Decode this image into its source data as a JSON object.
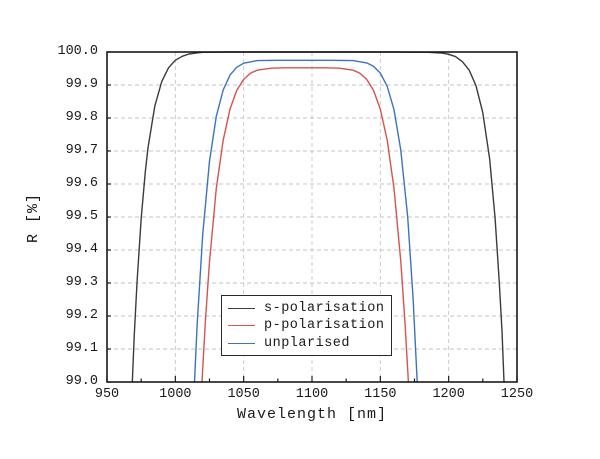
{
  "chart_data": {
    "type": "line",
    "title": "",
    "xlabel": "Wavelength [nm]",
    "ylabel": "R [%]",
    "xlim": [
      950,
      1250
    ],
    "ylim": [
      99.0,
      100.0
    ],
    "x_major_ticks": [
      950,
      1000,
      1050,
      1100,
      1150,
      1200,
      1250
    ],
    "x_tick_labels": [
      "950",
      "1000",
      "1050",
      "1100",
      "1150",
      "1200",
      "1250"
    ],
    "x_minor_ticks": [
      975,
      1025,
      1075,
      1125,
      1175,
      1225
    ],
    "y_ticks": [
      100.0,
      99.9,
      99.8,
      99.7,
      99.6,
      99.5,
      99.4,
      99.3,
      99.2,
      99.1,
      99.0
    ],
    "y_tick_labels": [
      "100.0",
      "99.9",
      "99.8",
      "99.7",
      "99.6",
      "99.5",
      "99.4",
      "99.3",
      "99.2",
      "99.1",
      "99.0"
    ],
    "grid": {
      "show": true,
      "style": "dashed",
      "color": "#c6c6c6"
    },
    "legend": {
      "position": "lower-center",
      "border": true,
      "background": "#ffffff"
    },
    "series": [
      {
        "name": "s-polarisation",
        "color": "#3b3b3b",
        "points": [
          [
            968.5,
            99.0
          ],
          [
            970,
            99.144
          ],
          [
            972,
            99.306
          ],
          [
            975,
            99.496
          ],
          [
            978,
            99.637
          ],
          [
            980,
            99.71
          ],
          [
            985,
            99.836
          ],
          [
            990,
            99.91
          ],
          [
            995,
            99.952
          ],
          [
            1000,
            99.975
          ],
          [
            1005,
            99.987
          ],
          [
            1010,
            99.994
          ],
          [
            1015,
            99.997
          ],
          [
            1020,
            99.999
          ],
          [
            1040,
            100.0
          ],
          [
            1080,
            100.0
          ],
          [
            1120,
            100.0
          ],
          [
            1160,
            100.0
          ],
          [
            1185,
            99.999
          ],
          [
            1195,
            99.997
          ],
          [
            1200,
            99.993
          ],
          [
            1205,
            99.986
          ],
          [
            1210,
            99.971
          ],
          [
            1215,
            99.945
          ],
          [
            1220,
            99.898
          ],
          [
            1225,
            99.816
          ],
          [
            1230,
            99.675
          ],
          [
            1234,
            99.496
          ],
          [
            1237,
            99.306
          ],
          [
            1239,
            99.155
          ],
          [
            1240.5,
            99.0
          ]
        ]
      },
      {
        "name": "p-polarisation",
        "color": "#d9524b",
        "points": [
          [
            1019.5,
            99.0
          ],
          [
            1022,
            99.185
          ],
          [
            1025,
            99.365
          ],
          [
            1030,
            99.587
          ],
          [
            1035,
            99.733
          ],
          [
            1040,
            99.827
          ],
          [
            1045,
            99.884
          ],
          [
            1050,
            99.917
          ],
          [
            1055,
            99.936
          ],
          [
            1060,
            99.945
          ],
          [
            1070,
            99.951
          ],
          [
            1080,
            99.952
          ],
          [
            1095,
            99.952
          ],
          [
            1110,
            99.952
          ],
          [
            1120,
            99.951
          ],
          [
            1130,
            99.945
          ],
          [
            1135,
            99.936
          ],
          [
            1140,
            99.917
          ],
          [
            1145,
            99.884
          ],
          [
            1150,
            99.827
          ],
          [
            1155,
            99.733
          ],
          [
            1160,
            99.587
          ],
          [
            1165,
            99.365
          ],
          [
            1168,
            99.185
          ],
          [
            1170.5,
            99.0
          ]
        ]
      },
      {
        "name": "unplarised",
        "color": "#3c73be",
        "points": [
          [
            1014,
            99.0
          ],
          [
            1016,
            99.176
          ],
          [
            1020,
            99.446
          ],
          [
            1025,
            99.669
          ],
          [
            1030,
            99.805
          ],
          [
            1035,
            99.885
          ],
          [
            1040,
            99.93
          ],
          [
            1045,
            99.954
          ],
          [
            1050,
            99.966
          ],
          [
            1060,
            99.974
          ],
          [
            1075,
            99.975
          ],
          [
            1095,
            99.975
          ],
          [
            1115,
            99.975
          ],
          [
            1130,
            99.974
          ],
          [
            1140,
            99.967
          ],
          [
            1145,
            99.957
          ],
          [
            1150,
            99.936
          ],
          [
            1155,
            99.896
          ],
          [
            1160,
            99.825
          ],
          [
            1165,
            99.702
          ],
          [
            1170,
            99.5
          ],
          [
            1174,
            99.253
          ],
          [
            1177,
            99.0
          ]
        ]
      }
    ],
    "style": {
      "frame_color": "#1a1a1a",
      "background": "#ffffff",
      "tick_direction": "in"
    }
  }
}
